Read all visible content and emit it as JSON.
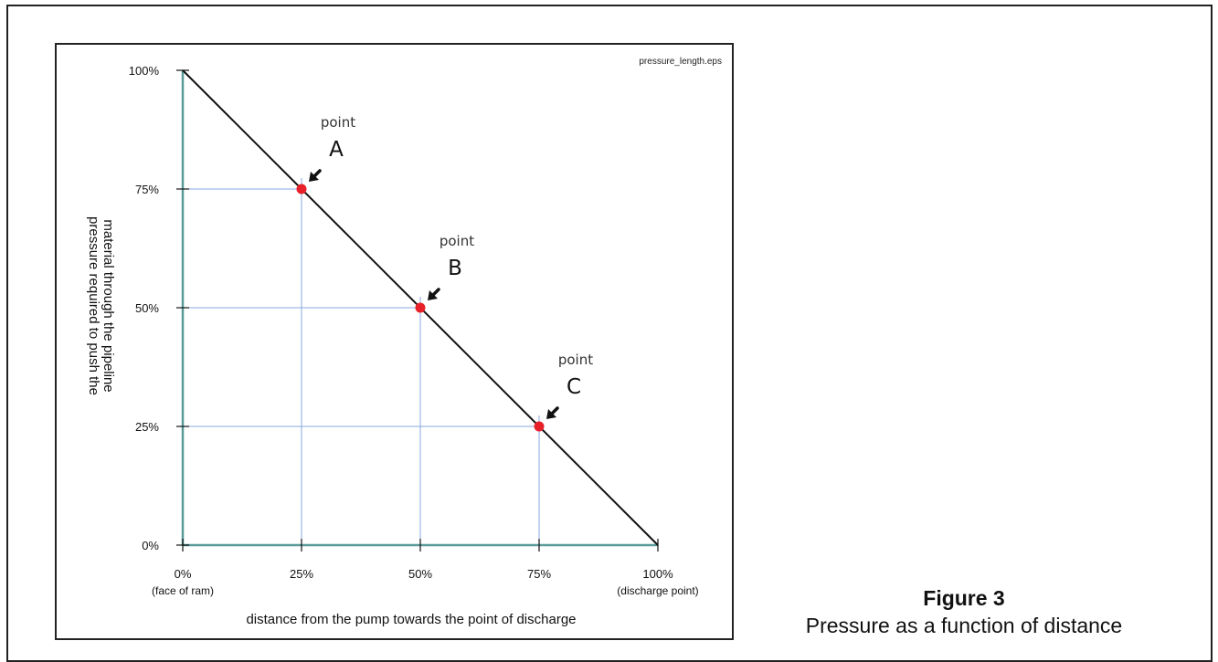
{
  "chart_data": {
    "type": "line",
    "filename_label": "pressure_length.eps",
    "x_axis": {
      "label": "distance from the pump towards the point of discharge",
      "range": [
        0,
        100
      ],
      "ticks": [
        {
          "value": 0,
          "label": "0%",
          "sublabel": "(face of ram)"
        },
        {
          "value": 25,
          "label": "25%",
          "sublabel": ""
        },
        {
          "value": 50,
          "label": "50%",
          "sublabel": ""
        },
        {
          "value": 75,
          "label": "75%",
          "sublabel": ""
        },
        {
          "value": 100,
          "label": "100%",
          "sublabel": "(discharge point)"
        }
      ]
    },
    "y_axis": {
      "label_line1": "pressure required to push the",
      "label_line2": "material through the pipeline",
      "range": [
        0,
        100
      ],
      "ticks": [
        {
          "value": 0,
          "label": "0%"
        },
        {
          "value": 25,
          "label": "25%"
        },
        {
          "value": 50,
          "label": "50%"
        },
        {
          "value": 75,
          "label": "75%"
        },
        {
          "value": 100,
          "label": "100%"
        }
      ]
    },
    "series": [
      {
        "x": [
          0,
          100
        ],
        "y": [
          100,
          0
        ],
        "color": "#111111"
      }
    ],
    "points": [
      {
        "x": 25,
        "y": 75,
        "word": "point",
        "letter": "A"
      },
      {
        "x": 50,
        "y": 50,
        "word": "point",
        "letter": "B"
      },
      {
        "x": 75,
        "y": 25,
        "word": "point",
        "letter": "C"
      }
    ],
    "colors": {
      "line": "#111111",
      "axis": "#5a9a9a",
      "guide": "#8aa8e0",
      "point": "#e8202a",
      "arrow": "#111111"
    }
  },
  "caption": {
    "number": "Figure 3",
    "text": "Pressure as a function of distance"
  }
}
